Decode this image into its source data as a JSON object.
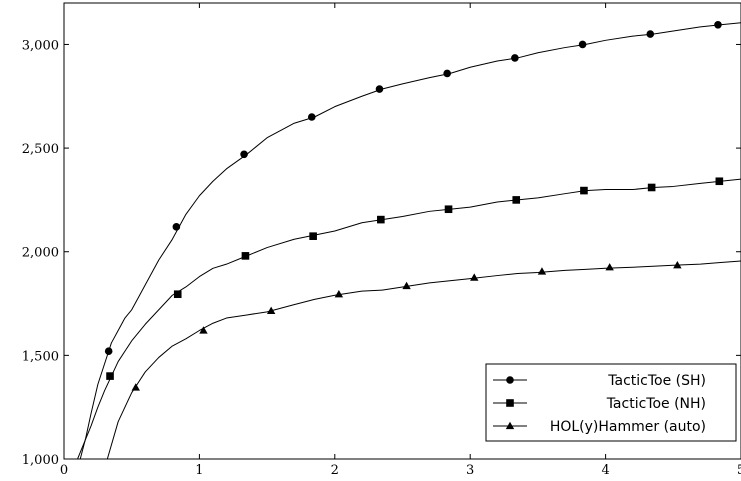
{
  "chart_data": {
    "type": "line",
    "title": "",
    "xlabel": "",
    "ylabel": "",
    "xlim": [
      0,
      5
    ],
    "ylim": [
      1000,
      3200
    ],
    "x_ticks": [
      "0",
      "1",
      "2",
      "3",
      "4",
      "5"
    ],
    "y_ticks": [
      "1,000",
      "1,500",
      "2,000",
      "2,500",
      "3,000"
    ],
    "y_tick_values": [
      1000,
      1500,
      2000,
      2500,
      3000
    ],
    "x_tick_values": [
      0,
      1,
      2,
      3,
      4,
      5
    ],
    "grid": false,
    "legend_position": "bottom-right",
    "series": [
      {
        "name": "TacticToe (SH)",
        "marker": "circle",
        "x": [
          0.12,
          0.16,
          0.2,
          0.25,
          0.3,
          0.35,
          0.4,
          0.45,
          0.5,
          0.55,
          0.6,
          0.7,
          0.8,
          0.9,
          1.0,
          1.1,
          1.2,
          1.35,
          1.5,
          1.7,
          1.85,
          2.0,
          2.2,
          2.35,
          2.5,
          2.7,
          2.85,
          3.0,
          3.2,
          3.35,
          3.5,
          3.7,
          3.85,
          4.0,
          4.2,
          4.35,
          4.5,
          4.7,
          4.85,
          5.0
        ],
        "y": [
          1000,
          1100,
          1220,
          1360,
          1460,
          1560,
          1620,
          1680,
          1720,
          1780,
          1840,
          1960,
          2060,
          2180,
          2270,
          2340,
          2400,
          2470,
          2550,
          2620,
          2650,
          2700,
          2750,
          2785,
          2810,
          2840,
          2860,
          2890,
          2920,
          2935,
          2960,
          2985,
          3000,
          3020,
          3040,
          3050,
          3065,
          3085,
          3095,
          3105
        ],
        "marker_x": [
          0.33,
          0.83,
          1.33,
          1.83,
          2.33,
          2.83,
          3.33,
          3.83,
          4.33,
          4.83
        ],
        "marker_y": [
          1520,
          2120,
          2470,
          2650,
          2785,
          2860,
          2935,
          3000,
          3050,
          3095
        ]
      },
      {
        "name": "TacticToe (NH)",
        "marker": "square",
        "x": [
          0.1,
          0.15,
          0.2,
          0.25,
          0.3,
          0.35,
          0.4,
          0.5,
          0.6,
          0.7,
          0.8,
          0.9,
          1.0,
          1.1,
          1.2,
          1.35,
          1.5,
          1.7,
          1.85,
          2.0,
          2.2,
          2.35,
          2.5,
          2.7,
          2.85,
          3.0,
          3.2,
          3.35,
          3.5,
          3.7,
          3.85,
          4.0,
          4.2,
          4.35,
          4.5,
          4.7,
          4.85,
          5.0
        ],
        "y": [
          1000,
          1080,
          1160,
          1250,
          1330,
          1400,
          1470,
          1570,
          1650,
          1720,
          1790,
          1830,
          1880,
          1920,
          1940,
          1980,
          2020,
          2060,
          2080,
          2100,
          2140,
          2155,
          2170,
          2195,
          2205,
          2215,
          2240,
          2250,
          2260,
          2280,
          2295,
          2300,
          2300,
          2310,
          2315,
          2330,
          2340,
          2350
        ],
        "marker_x": [
          0.34,
          0.84,
          1.34,
          1.84,
          2.34,
          2.84,
          3.34,
          3.84,
          4.34,
          4.84
        ],
        "marker_y": [
          1400,
          1795,
          1980,
          2075,
          2155,
          2205,
          2250,
          2295,
          2310,
          2340
        ]
      },
      {
        "name": "HOL(y)Hammer (auto)",
        "marker": "triangle",
        "x": [
          0.32,
          0.4,
          0.5,
          0.6,
          0.7,
          0.8,
          0.9,
          1.0,
          1.1,
          1.2,
          1.35,
          1.5,
          1.7,
          1.85,
          2.0,
          2.2,
          2.35,
          2.5,
          2.7,
          2.85,
          3.0,
          3.2,
          3.35,
          3.5,
          3.7,
          3.85,
          4.0,
          4.2,
          4.35,
          4.5,
          4.7,
          4.85,
          5.0
        ],
        "y": [
          1000,
          1180,
          1320,
          1420,
          1490,
          1545,
          1580,
          1620,
          1655,
          1680,
          1695,
          1710,
          1745,
          1770,
          1790,
          1810,
          1815,
          1830,
          1850,
          1860,
          1870,
          1885,
          1895,
          1900,
          1910,
          1915,
          1920,
          1925,
          1930,
          1935,
          1940,
          1948,
          1955
        ],
        "marker_x": [
          0.53,
          1.03,
          1.53,
          2.03,
          2.53,
          3.03,
          3.53,
          4.03,
          4.53
        ],
        "marker_y": [
          1345,
          1620,
          1715,
          1795,
          1835,
          1875,
          1905,
          1925,
          1935
        ]
      }
    ]
  }
}
